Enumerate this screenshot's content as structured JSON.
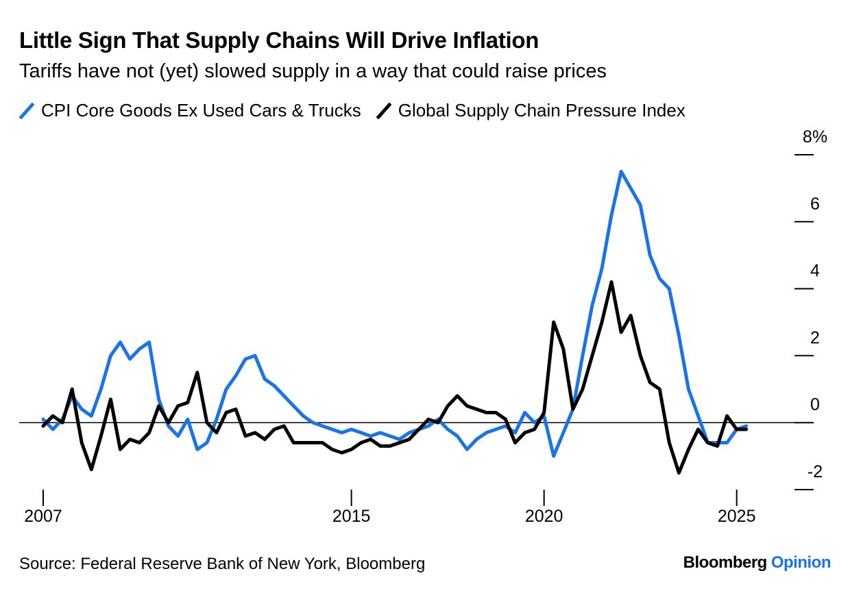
{
  "title": "Little Sign That Supply Chains Will Drive Inflation",
  "subtitle": "Tariffs have not (yet) slowed supply in a way that could raise prices",
  "source": "Source: Federal Reserve Bank of New York, Bloomberg",
  "brand": {
    "name": "Bloomberg",
    "suffix": "Opinion",
    "suffix_color": "#1a73e8"
  },
  "chart_data": {
    "type": "line",
    "title": "Little Sign That Supply Chains Will Drive Inflation",
    "subtitle": "Tariffs have not (yet) slowed supply in a way that could raise prices",
    "xlabel": "",
    "ylabel": "",
    "y_unit": "%",
    "xlim": [
      2007.0,
      2026.5
    ],
    "ylim": [
      -2.0,
      8.0
    ],
    "x_ticks": [
      2007,
      2015,
      2020,
      2025
    ],
    "x_tick_labels": [
      "2007",
      "2015",
      "2020",
      "2025"
    ],
    "y_ticks": [
      8,
      6,
      4,
      2,
      0,
      -2
    ],
    "y_tick_labels": [
      "8%",
      "6",
      "4",
      "2",
      "0",
      "-2"
    ],
    "y_axis_side": "right",
    "grid": false,
    "zero_line": true,
    "legend_position": "top-left",
    "series": [
      {
        "name": "CPI Core Goods Ex Used Cars & Trucks",
        "color": "#1a73e8",
        "points": [
          [
            2007.0,
            0.1
          ],
          [
            2007.25,
            -0.2
          ],
          [
            2007.5,
            0.1
          ],
          [
            2007.75,
            0.8
          ],
          [
            2008.0,
            0.4
          ],
          [
            2008.25,
            0.2
          ],
          [
            2008.5,
            1.0
          ],
          [
            2008.75,
            2.0
          ],
          [
            2009.0,
            2.4
          ],
          [
            2009.25,
            1.9
          ],
          [
            2009.5,
            2.2
          ],
          [
            2009.75,
            2.4
          ],
          [
            2010.0,
            0.7
          ],
          [
            2010.25,
            -0.1
          ],
          [
            2010.5,
            -0.4
          ],
          [
            2010.75,
            0.1
          ],
          [
            2011.0,
            -0.8
          ],
          [
            2011.25,
            -0.6
          ],
          [
            2011.5,
            0.1
          ],
          [
            2011.75,
            1.0
          ],
          [
            2012.0,
            1.4
          ],
          [
            2012.25,
            1.9
          ],
          [
            2012.5,
            2.0
          ],
          [
            2012.75,
            1.3
          ],
          [
            2013.0,
            1.1
          ],
          [
            2013.25,
            0.8
          ],
          [
            2013.5,
            0.5
          ],
          [
            2013.75,
            0.2
          ],
          [
            2014.0,
            0.0
          ],
          [
            2014.25,
            -0.1
          ],
          [
            2014.5,
            -0.2
          ],
          [
            2014.75,
            -0.3
          ],
          [
            2015.0,
            -0.2
          ],
          [
            2015.25,
            -0.3
          ],
          [
            2015.5,
            -0.4
          ],
          [
            2015.75,
            -0.3
          ],
          [
            2016.0,
            -0.4
          ],
          [
            2016.25,
            -0.5
          ],
          [
            2016.5,
            -0.3
          ],
          [
            2016.75,
            -0.2
          ],
          [
            2017.0,
            -0.1
          ],
          [
            2017.25,
            0.1
          ],
          [
            2017.5,
            -0.2
          ],
          [
            2017.75,
            -0.4
          ],
          [
            2018.0,
            -0.8
          ],
          [
            2018.25,
            -0.5
          ],
          [
            2018.5,
            -0.3
          ],
          [
            2018.75,
            -0.2
          ],
          [
            2019.0,
            -0.1
          ],
          [
            2019.25,
            -0.3
          ],
          [
            2019.5,
            0.3
          ],
          [
            2019.75,
            0.0
          ],
          [
            2020.0,
            0.2
          ],
          [
            2020.25,
            -1.0
          ],
          [
            2020.5,
            -0.3
          ],
          [
            2020.75,
            0.4
          ],
          [
            2021.0,
            2.0
          ],
          [
            2021.25,
            3.5
          ],
          [
            2021.5,
            4.6
          ],
          [
            2021.75,
            6.2
          ],
          [
            2022.0,
            7.5
          ],
          [
            2022.25,
            7.0
          ],
          [
            2022.5,
            6.5
          ],
          [
            2022.75,
            5.0
          ],
          [
            2023.0,
            4.3
          ],
          [
            2023.25,
            4.0
          ],
          [
            2023.5,
            2.6
          ],
          [
            2023.75,
            1.0
          ],
          [
            2024.0,
            0.2
          ],
          [
            2024.25,
            -0.6
          ],
          [
            2024.5,
            -0.6
          ],
          [
            2024.75,
            -0.6
          ],
          [
            2025.0,
            -0.2
          ],
          [
            2025.25,
            -0.1
          ]
        ]
      },
      {
        "name": "Global Supply Chain Pressure Index",
        "color": "#000000",
        "points": [
          [
            2007.0,
            -0.1
          ],
          [
            2007.25,
            0.2
          ],
          [
            2007.5,
            0.0
          ],
          [
            2007.75,
            1.0
          ],
          [
            2008.0,
            -0.6
          ],
          [
            2008.25,
            -1.4
          ],
          [
            2008.5,
            -0.4
          ],
          [
            2008.75,
            0.7
          ],
          [
            2009.0,
            -0.8
          ],
          [
            2009.25,
            -0.5
          ],
          [
            2009.5,
            -0.6
          ],
          [
            2009.75,
            -0.3
          ],
          [
            2010.0,
            0.5
          ],
          [
            2010.25,
            0.0
          ],
          [
            2010.5,
            0.5
          ],
          [
            2010.75,
            0.6
          ],
          [
            2011.0,
            1.5
          ],
          [
            2011.25,
            0.0
          ],
          [
            2011.5,
            -0.3
          ],
          [
            2011.75,
            0.3
          ],
          [
            2012.0,
            0.4
          ],
          [
            2012.25,
            -0.4
          ],
          [
            2012.5,
            -0.3
          ],
          [
            2012.75,
            -0.5
          ],
          [
            2013.0,
            -0.2
          ],
          [
            2013.25,
            -0.1
          ],
          [
            2013.5,
            -0.6
          ],
          [
            2013.75,
            -0.6
          ],
          [
            2014.0,
            -0.6
          ],
          [
            2014.25,
            -0.6
          ],
          [
            2014.5,
            -0.8
          ],
          [
            2014.75,
            -0.9
          ],
          [
            2015.0,
            -0.8
          ],
          [
            2015.25,
            -0.6
          ],
          [
            2015.5,
            -0.5
          ],
          [
            2015.75,
            -0.7
          ],
          [
            2016.0,
            -0.7
          ],
          [
            2016.25,
            -0.6
          ],
          [
            2016.5,
            -0.5
          ],
          [
            2016.75,
            -0.2
          ],
          [
            2017.0,
            0.1
          ],
          [
            2017.25,
            0.0
          ],
          [
            2017.5,
            0.5
          ],
          [
            2017.75,
            0.8
          ],
          [
            2018.0,
            0.5
          ],
          [
            2018.25,
            0.4
          ],
          [
            2018.5,
            0.3
          ],
          [
            2018.75,
            0.3
          ],
          [
            2019.0,
            0.1
          ],
          [
            2019.25,
            -0.6
          ],
          [
            2019.5,
            -0.3
          ],
          [
            2019.75,
            -0.2
          ],
          [
            2020.0,
            0.3
          ],
          [
            2020.25,
            3.0
          ],
          [
            2020.5,
            2.2
          ],
          [
            2020.75,
            0.4
          ],
          [
            2021.0,
            1.0
          ],
          [
            2021.25,
            2.0
          ],
          [
            2021.5,
            3.0
          ],
          [
            2021.75,
            4.2
          ],
          [
            2022.0,
            2.7
          ],
          [
            2022.25,
            3.2
          ],
          [
            2022.5,
            2.0
          ],
          [
            2022.75,
            1.2
          ],
          [
            2023.0,
            1.0
          ],
          [
            2023.25,
            -0.6
          ],
          [
            2023.5,
            -1.5
          ],
          [
            2023.75,
            -0.8
          ],
          [
            2024.0,
            -0.2
          ],
          [
            2024.25,
            -0.6
          ],
          [
            2024.5,
            -0.7
          ],
          [
            2024.75,
            0.2
          ],
          [
            2025.0,
            -0.2
          ],
          [
            2025.25,
            -0.2
          ]
        ]
      }
    ]
  }
}
